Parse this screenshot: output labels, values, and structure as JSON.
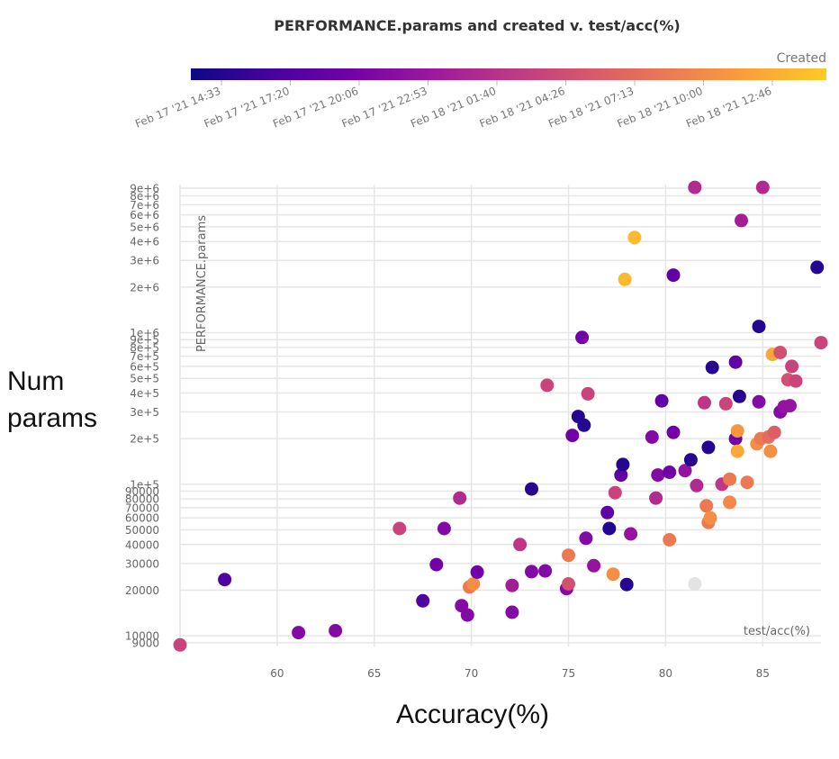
{
  "chart_data": {
    "type": "scatter",
    "title": "PERFORMANCE.params and created v. test/acc(%)",
    "inner_xlabel": "test/acc(%)",
    "inner_ylabel": "PERFORMANCE.params",
    "outer_xlabel": "Accuracy(%)",
    "outer_ylabel_lines": [
      "Num",
      "params"
    ],
    "colorbar_title": "Created",
    "colorbar_ticks": [
      "Feb 17 '21 14:33",
      "Feb 17 '21 17:20",
      "Feb 17 '21 20:06",
      "Feb 17 '21 22:53",
      "Feb 18 '21 01:40",
      "Feb 18 '21 04:26",
      "Feb 18 '21 07:13",
      "Feb 18 '21 10:00",
      "Feb 18 '21 12:46"
    ],
    "colorbar_colors": [
      "#0d0887",
      "#46039f",
      "#7201a8",
      "#9c179e",
      "#bd3786",
      "#d8576b",
      "#ed7953",
      "#fb9f3a",
      "#fdca26"
    ],
    "grid": true,
    "y_scale": "log",
    "xlim": [
      55,
      88
    ],
    "ylim": [
      8500,
      9500000
    ],
    "x_ticks": [
      "60",
      "65",
      "70",
      "75",
      "80",
      "85"
    ],
    "y_ticks": [
      "9000",
      "10000",
      "20000",
      "30000",
      "40000",
      "50000",
      "60000",
      "70000",
      "80000",
      "90000",
      "1e+5",
      "2e+5",
      "3e+5",
      "4e+5",
      "5e+5",
      "6e+5",
      "7e+5",
      "8e+5",
      "9e+5",
      "1e+6",
      "2e+6",
      "3e+6",
      "4e+6",
      "5e+6",
      "6e+6",
      "7e+6",
      "8e+6",
      "9e+6"
    ],
    "points": [
      {
        "x": 55.0,
        "y": 8700,
        "c": 0.55
      },
      {
        "x": 57.3,
        "y": 23500,
        "c": 0.15
      },
      {
        "x": 61.1,
        "y": 10500,
        "c": 0.3
      },
      {
        "x": 63.0,
        "y": 10800,
        "c": 0.3
      },
      {
        "x": 66.3,
        "y": 51000,
        "c": 0.55
      },
      {
        "x": 67.5,
        "y": 17000,
        "c": 0.15
      },
      {
        "x": 68.2,
        "y": 29500,
        "c": 0.25
      },
      {
        "x": 68.6,
        "y": 51000,
        "c": 0.3
      },
      {
        "x": 69.4,
        "y": 81000,
        "c": 0.45
      },
      {
        "x": 69.5,
        "y": 15800,
        "c": 0.3
      },
      {
        "x": 69.8,
        "y": 13700,
        "c": 0.3
      },
      {
        "x": 69.9,
        "y": 21000,
        "c": 0.75
      },
      {
        "x": 70.1,
        "y": 22000,
        "c": 0.82
      },
      {
        "x": 70.3,
        "y": 26300,
        "c": 0.25
      },
      {
        "x": 72.1,
        "y": 21500,
        "c": 0.4
      },
      {
        "x": 72.1,
        "y": 14300,
        "c": 0.3
      },
      {
        "x": 72.5,
        "y": 40000,
        "c": 0.5
      },
      {
        "x": 73.1,
        "y": 26500,
        "c": 0.3
      },
      {
        "x": 73.1,
        "y": 93000,
        "c": 0.05
      },
      {
        "x": 73.8,
        "y": 26800,
        "c": 0.3
      },
      {
        "x": 73.9,
        "y": 450000,
        "c": 0.55
      },
      {
        "x": 74.9,
        "y": 20500,
        "c": 0.3
      },
      {
        "x": 75.0,
        "y": 22000,
        "c": 0.6
      },
      {
        "x": 75.0,
        "y": 34000,
        "c": 0.75
      },
      {
        "x": 75.2,
        "y": 210000,
        "c": 0.25
      },
      {
        "x": 75.5,
        "y": 280000,
        "c": 0.05
      },
      {
        "x": 75.7,
        "y": 930000,
        "c": 0.25
      },
      {
        "x": 75.8,
        "y": 245000,
        "c": 0.05
      },
      {
        "x": 75.9,
        "y": 44000,
        "c": 0.3
      },
      {
        "x": 76.0,
        "y": 395000,
        "c": 0.55
      },
      {
        "x": 76.3,
        "y": 29000,
        "c": 0.35
      },
      {
        "x": 77.0,
        "y": 65000,
        "c": 0.2
      },
      {
        "x": 77.1,
        "y": 51000,
        "c": 0.05
      },
      {
        "x": 77.3,
        "y": 25500,
        "c": 0.82
      },
      {
        "x": 77.4,
        "y": 88000,
        "c": 0.55
      },
      {
        "x": 77.7,
        "y": 115000,
        "c": 0.2
      },
      {
        "x": 77.8,
        "y": 135000,
        "c": 0.05
      },
      {
        "x": 77.9,
        "y": 2250000,
        "c": 0.95
      },
      {
        "x": 78.0,
        "y": 21800,
        "c": 0.05
      },
      {
        "x": 78.2,
        "y": 47000,
        "c": 0.35
      },
      {
        "x": 78.4,
        "y": 4250000,
        "c": 0.95
      },
      {
        "x": 79.3,
        "y": 205000,
        "c": 0.3
      },
      {
        "x": 79.5,
        "y": 81000,
        "c": 0.45
      },
      {
        "x": 79.6,
        "y": 115000,
        "c": 0.3
      },
      {
        "x": 79.8,
        "y": 355000,
        "c": 0.2
      },
      {
        "x": 80.2,
        "y": 43000,
        "c": 0.75
      },
      {
        "x": 80.2,
        "y": 120000,
        "c": 0.25
      },
      {
        "x": 80.4,
        "y": 2400000,
        "c": 0.2
      },
      {
        "x": 80.4,
        "y": 220000,
        "c": 0.25
      },
      {
        "x": 81.0,
        "y": 123000,
        "c": 0.35
      },
      {
        "x": 81.3,
        "y": 145000,
        "c": 0.05
      },
      {
        "x": 81.5,
        "y": 9100000,
        "c": 0.45
      },
      {
        "x": 81.5,
        "y": 22000,
        "c": -1
      },
      {
        "x": 81.6,
        "y": 98000,
        "c": 0.45
      },
      {
        "x": 82.0,
        "y": 345000,
        "c": 0.5
      },
      {
        "x": 82.1,
        "y": 72000,
        "c": 0.75
      },
      {
        "x": 82.2,
        "y": 175000,
        "c": 0.05
      },
      {
        "x": 82.2,
        "y": 56000,
        "c": 0.75
      },
      {
        "x": 82.3,
        "y": 60000,
        "c": 0.82
      },
      {
        "x": 82.4,
        "y": 590000,
        "c": 0.05
      },
      {
        "x": 82.9,
        "y": 100000,
        "c": 0.5
      },
      {
        "x": 83.1,
        "y": 340000,
        "c": 0.55
      },
      {
        "x": 83.3,
        "y": 108000,
        "c": 0.75
      },
      {
        "x": 83.3,
        "y": 76000,
        "c": 0.8
      },
      {
        "x": 83.6,
        "y": 200000,
        "c": 0.25
      },
      {
        "x": 83.6,
        "y": 640000,
        "c": 0.2
      },
      {
        "x": 83.7,
        "y": 165000,
        "c": 0.9
      },
      {
        "x": 83.7,
        "y": 225000,
        "c": 0.85
      },
      {
        "x": 83.8,
        "y": 380000,
        "c": 0.05
      },
      {
        "x": 83.9,
        "y": 5500000,
        "c": 0.4
      },
      {
        "x": 84.2,
        "y": 103000,
        "c": 0.75
      },
      {
        "x": 84.7,
        "y": 185000,
        "c": 0.82
      },
      {
        "x": 84.8,
        "y": 1100000,
        "c": 0.05
      },
      {
        "x": 84.8,
        "y": 350000,
        "c": 0.3
      },
      {
        "x": 84.9,
        "y": 200000,
        "c": 0.75
      },
      {
        "x": 85.0,
        "y": 9100000,
        "c": 0.45
      },
      {
        "x": 85.3,
        "y": 205000,
        "c": 0.7
      },
      {
        "x": 85.4,
        "y": 165000,
        "c": 0.82
      },
      {
        "x": 85.5,
        "y": 720000,
        "c": 0.9
      },
      {
        "x": 85.6,
        "y": 220000,
        "c": 0.65
      },
      {
        "x": 85.9,
        "y": 740000,
        "c": 0.6
      },
      {
        "x": 85.9,
        "y": 300000,
        "c": 0.3
      },
      {
        "x": 86.1,
        "y": 325000,
        "c": 0.35
      },
      {
        "x": 86.3,
        "y": 490000,
        "c": 0.6
      },
      {
        "x": 86.4,
        "y": 330000,
        "c": 0.35
      },
      {
        "x": 86.5,
        "y": 600000,
        "c": 0.55
      },
      {
        "x": 86.7,
        "y": 480000,
        "c": 0.55
      },
      {
        "x": 87.8,
        "y": 2700000,
        "c": 0.05
      },
      {
        "x": 88.0,
        "y": 860000,
        "c": 0.55
      }
    ]
  }
}
